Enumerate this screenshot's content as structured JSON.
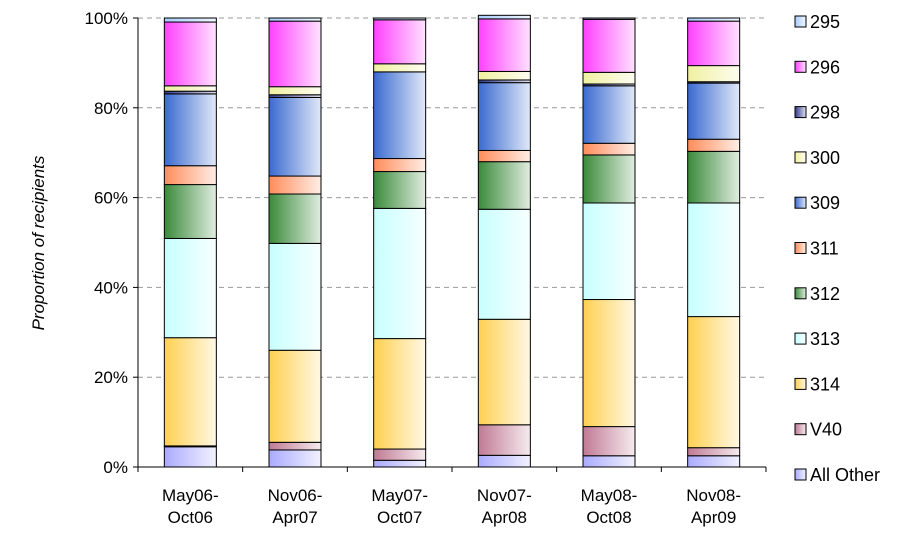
{
  "chart_data": {
    "type": "bar",
    "stacked": true,
    "percent": true,
    "ylabel": "Proportion of recipients",
    "xlabel": "",
    "ylim": [
      0,
      100
    ],
    "yticks": [
      "0%",
      "20%",
      "40%",
      "60%",
      "80%",
      "100%"
    ],
    "grid": true,
    "legend_position": "right",
    "categories": [
      [
        "May06-",
        "Oct06"
      ],
      [
        "Nov06-",
        "Apr07"
      ],
      [
        "May07-",
        "Oct07"
      ],
      [
        "Nov07-",
        "Apr08"
      ],
      [
        "May08-",
        "Oct08"
      ],
      [
        "Nov08-",
        "Apr09"
      ]
    ],
    "series": [
      {
        "name": "All Other",
        "color": "#aaaaff",
        "values": [
          4.5,
          3.8,
          1.5,
          2.6,
          2.5,
          2.5
        ]
      },
      {
        "name": "V40",
        "color": "#c07a94",
        "values": [
          0.2,
          1.7,
          2.5,
          6.8,
          6.5,
          1.8
        ]
      },
      {
        "name": "314",
        "color": "#ffd050",
        "values": [
          24.1,
          20.5,
          24.6,
          23.5,
          28.3,
          29.2
        ]
      },
      {
        "name": "313",
        "color": "#c8ffff",
        "values": [
          22.1,
          23.8,
          29.0,
          24.5,
          21.5,
          25.3
        ]
      },
      {
        "name": "312",
        "color": "#3a8a3a",
        "values": [
          12.0,
          11.0,
          8.2,
          10.6,
          10.7,
          11.5
        ]
      },
      {
        "name": "311",
        "color": "#ff8c5a",
        "values": [
          4.2,
          4.0,
          2.9,
          2.5,
          2.6,
          2.7
        ]
      },
      {
        "name": "309",
        "color": "#3a6ad0",
        "values": [
          16.0,
          17.5,
          19.3,
          15.1,
          12.8,
          12.5
        ]
      },
      {
        "name": "298",
        "color": "#303a8a",
        "values": [
          0.6,
          0.6,
          0.0,
          0.6,
          0.4,
          0.3
        ]
      },
      {
        "name": "300",
        "color": "#f0f0a0",
        "values": [
          1.2,
          1.8,
          1.8,
          1.9,
          2.6,
          3.6
        ]
      },
      {
        "name": "296",
        "color": "#ff40ff",
        "values": [
          14.2,
          14.6,
          9.8,
          11.7,
          11.8,
          9.9
        ]
      },
      {
        "name": "295",
        "color": "#aaccff",
        "values": [
          0.9,
          0.7,
          0.4,
          0.8,
          0.3,
          0.7
        ]
      }
    ],
    "legend_order": [
      "295",
      "296",
      "298",
      "300",
      "309",
      "311",
      "312",
      "313",
      "314",
      "V40",
      "All Other"
    ]
  }
}
